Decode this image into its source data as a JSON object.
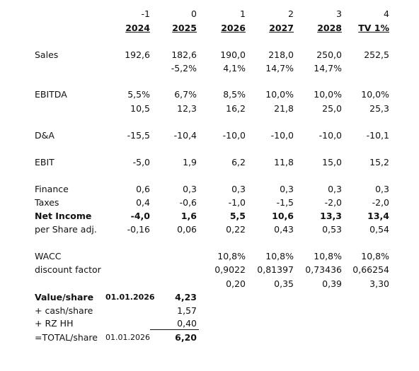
{
  "header": {
    "period_index": [
      "-1",
      "0",
      "1",
      "2",
      "3",
      "4"
    ],
    "years": [
      "2024",
      "2025",
      "2026",
      "2027",
      "2028",
      "TV 1%"
    ]
  },
  "rows": {
    "sales": {
      "label": "Sales",
      "values": [
        "192,6",
        "182,6",
        "190,0",
        "218,0",
        "250,0",
        "252,5"
      ],
      "growth": [
        "",
        "-5,2%",
        "4,1%",
        "14,7%",
        "14,7%",
        ""
      ]
    },
    "ebitda": {
      "label": "EBITDA",
      "margin": [
        "5,5%",
        "6,7%",
        "8,5%",
        "10,0%",
        "10,0%",
        "10,0%"
      ],
      "values": [
        "10,5",
        "12,3",
        "16,2",
        "21,8",
        "25,0",
        "25,3"
      ]
    },
    "da": {
      "label": "D&A",
      "values": [
        "-15,5",
        "-10,4",
        "-10,0",
        "-10,0",
        "-10,0",
        "-10,1"
      ]
    },
    "ebit": {
      "label": "EBIT",
      "values": [
        "-5,0",
        "1,9",
        "6,2",
        "11,8",
        "15,0",
        "15,2"
      ]
    },
    "finance": {
      "label": "Finance",
      "values": [
        "0,6",
        "0,3",
        "0,3",
        "0,3",
        "0,3",
        "0,3"
      ]
    },
    "taxes": {
      "label": "Taxes",
      "values": [
        "0,4",
        "-0,6",
        "-1,0",
        "-1,5",
        "-2,0",
        "-2,0"
      ]
    },
    "net_income": {
      "label": "Net Income",
      "values": [
        "-4,0",
        "1,6",
        "5,5",
        "10,6",
        "13,3",
        "13,4"
      ]
    },
    "per_share": {
      "label": "per Share adj.",
      "values": [
        "-0,16",
        "0,06",
        "0,22",
        "0,43",
        "0,53",
        "0,54"
      ]
    }
  },
  "dcf": {
    "wacc": {
      "label": "WACC",
      "values": [
        "10,8%",
        "10,8%",
        "10,8%",
        "10,8%"
      ]
    },
    "discount": {
      "label": "discount factor",
      "values": [
        "0,9022",
        "0,81397",
        "0,73436",
        "0,66254"
      ]
    },
    "pv": {
      "values": [
        "0,20",
        "0,35",
        "0,39",
        "3,30"
      ]
    }
  },
  "valuation": {
    "value_share": {
      "label": "Value/share",
      "date": "01.01.2026",
      "value": "4,23"
    },
    "cash_share": {
      "label": "+ cash/share",
      "value": "1,57"
    },
    "rz_hh": {
      "label": "+ RZ HH",
      "value": "0,40"
    },
    "total_share": {
      "label": "=TOTAL/share",
      "date": "01.01.2026",
      "value": "6,20"
    }
  }
}
